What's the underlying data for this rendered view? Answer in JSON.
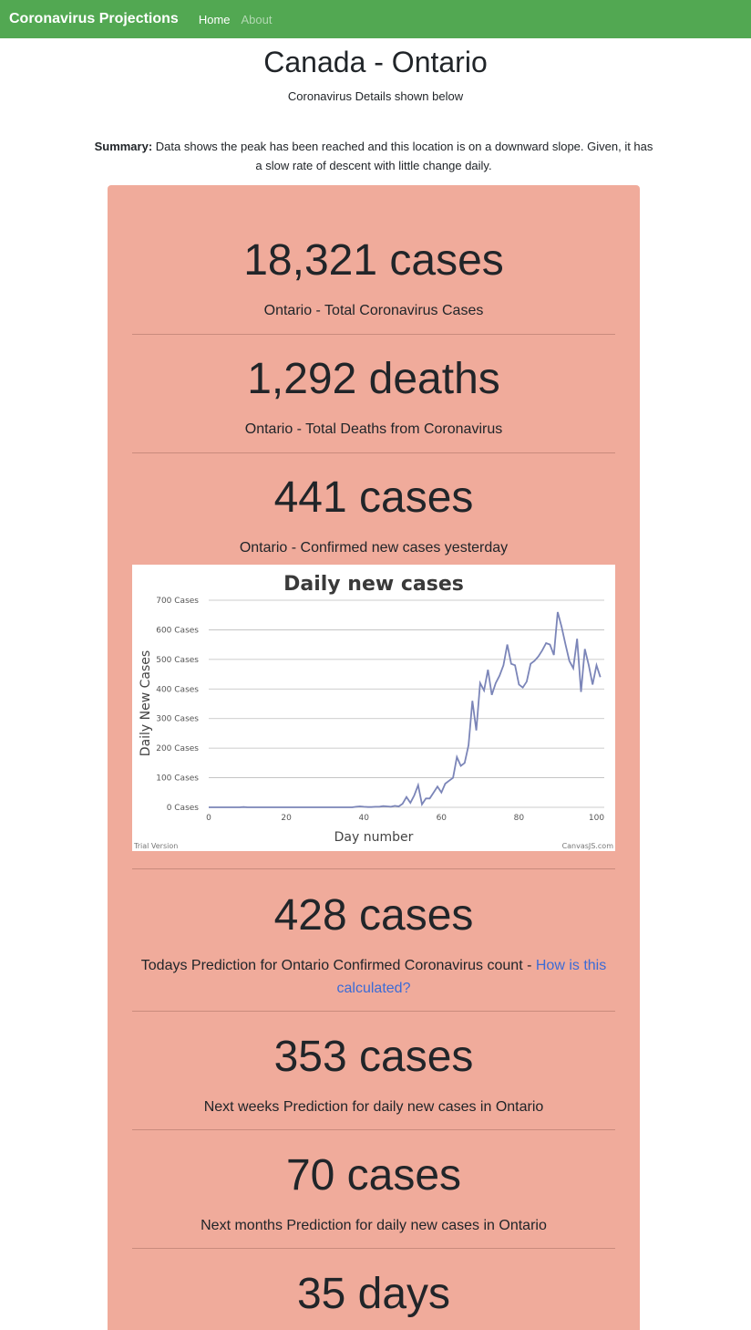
{
  "nav": {
    "brand": "Coronavirus Projections",
    "links": [
      {
        "label": "Home"
      },
      {
        "label": "About"
      }
    ]
  },
  "header": {
    "title": "Canada - Ontario",
    "subtitle": "Coronavirus Details shown below"
  },
  "summary": {
    "lead": "Summary:",
    "text": "Data shows the peak has been reached and this location is on a downward slope. Given, it has a slow rate of descent with little change daily."
  },
  "stats": [
    {
      "value": "18,321 cases",
      "label": "Ontario - Total Coronavirus Cases"
    },
    {
      "value": "1,292 deaths",
      "label": "Ontario - Total Deaths from Coronavirus"
    },
    {
      "value": "441 cases",
      "label": "Ontario - Confirmed new cases yesterday"
    },
    {
      "value": "428 cases",
      "label": "Todays Prediction for Ontario Confirmed Coronavirus count - ",
      "link": "How is this calculated?"
    },
    {
      "value": "353 cases",
      "label": "Next weeks Prediction for daily new cases in Ontario"
    },
    {
      "value": "70 cases",
      "label": "Next months Prediction for daily new cases in Ontario"
    },
    {
      "value": "35 days"
    }
  ],
  "colors": {
    "navbar": "#52a852",
    "card": "#f0ab9b",
    "link": "#3b6bd6",
    "series": "#7b85b8"
  },
  "chart_data": {
    "type": "line",
    "title": "Daily new cases",
    "xlabel": "Day number",
    "ylabel": "Daily New Cases",
    "xlim": [
      0,
      102
    ],
    "ylim": [
      0,
      700
    ],
    "xticks": [
      0,
      20,
      40,
      60,
      80,
      100
    ],
    "yticks": [
      {
        "value": 0,
        "label": "0 Cases"
      },
      {
        "value": 100,
        "label": "100 Cases"
      },
      {
        "value": 200,
        "label": "200 Cases"
      },
      {
        "value": 300,
        "label": "300 Cases"
      },
      {
        "value": 400,
        "label": "400 Cases"
      },
      {
        "value": 500,
        "label": "500 Cases"
      },
      {
        "value": 600,
        "label": "600 Cases"
      },
      {
        "value": 700,
        "label": "700 Cases"
      }
    ],
    "grid": true,
    "footer_left": "Trial Version",
    "footer_right": "CanvasJS.com",
    "series": [
      {
        "x": [
          0,
          1,
          2,
          3,
          4,
          5,
          6,
          7,
          8,
          9,
          10,
          11,
          12,
          13,
          14,
          15,
          16,
          17,
          18,
          19,
          20,
          21,
          22,
          23,
          24,
          25,
          26,
          27,
          28,
          29,
          30,
          31,
          32,
          33,
          34,
          35,
          36,
          37,
          38,
          39,
          40,
          41,
          42,
          43,
          44,
          45,
          46,
          47,
          48,
          49,
          50,
          51,
          52,
          53,
          54,
          55,
          56,
          57,
          58,
          59,
          60,
          61,
          62,
          63,
          64,
          65,
          66,
          67,
          68,
          69,
          70,
          71,
          72,
          73,
          74,
          75,
          76,
          77,
          78,
          79,
          80,
          81,
          82,
          83,
          84,
          85,
          86,
          87,
          88,
          89,
          90,
          91,
          92,
          93,
          94,
          95,
          96,
          97,
          98,
          99,
          100,
          101
        ],
        "values": [
          0,
          0,
          0,
          0,
          0,
          0,
          0,
          0,
          0,
          1,
          0,
          0,
          0,
          0,
          0,
          0,
          0,
          0,
          0,
          0,
          0,
          0,
          0,
          0,
          0,
          0,
          0,
          0,
          0,
          0,
          0,
          0,
          0,
          0,
          0,
          0,
          0,
          0,
          2,
          3,
          2,
          1,
          1,
          2,
          2,
          4,
          3,
          2,
          5,
          3,
          12,
          35,
          15,
          40,
          75,
          10,
          30,
          30,
          50,
          70,
          50,
          80,
          90,
          100,
          170,
          140,
          150,
          210,
          360,
          260,
          420,
          395,
          465,
          380,
          420,
          445,
          480,
          550,
          485,
          480,
          415,
          405,
          425,
          485,
          495,
          510,
          530,
          555,
          550,
          515,
          660,
          610,
          550,
          495,
          470,
          570,
          390,
          535,
          480,
          415,
          480,
          440
        ]
      }
    ]
  }
}
